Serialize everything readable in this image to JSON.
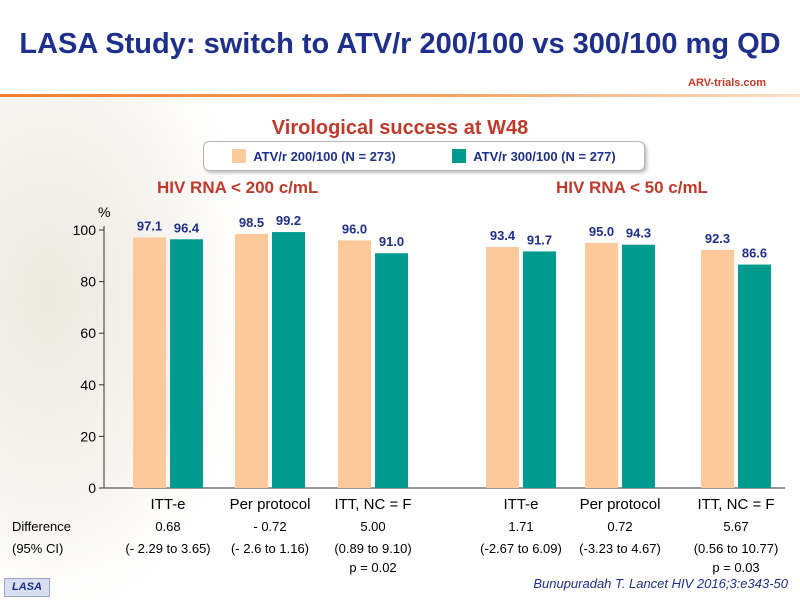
{
  "slide": {
    "title": "LASA Study: switch to ATV/r 200/100 vs 300/100 mg QD",
    "brand": "ARV-trials.com",
    "footer_tag": "LASA",
    "citation": "Bunupuradah T. Lancet HIV 2016;3:e343-50"
  },
  "colors": {
    "series1": "#fcc99a",
    "series2": "#009a8e",
    "title": "#1f2f8c",
    "accent": "#c0392b"
  },
  "chart_data": {
    "type": "bar",
    "title": "Virological success at W48",
    "ylabel": "%",
    "ylim": [
      0,
      100
    ],
    "yticks": [
      0,
      20,
      40,
      60,
      80,
      100
    ],
    "legend_placement": "top-center",
    "grid": false,
    "series": [
      {
        "name": "ATV/r 200/100 (N = 273)"
      },
      {
        "name": "ATV/r 300/100 (N = 277)"
      }
    ],
    "groups": [
      {
        "label": "HIV RNA < 200 c/mL",
        "categories": [
          {
            "label": "ITT-e",
            "values": [
              97.1,
              96.4
            ],
            "value_labels": [
              "97.1",
              "96.4"
            ],
            "difference": "0.68",
            "ci": "(- 2.29 to 3.65)",
            "p": ""
          },
          {
            "label": "Per protocol",
            "values": [
              98.5,
              99.2
            ],
            "value_labels": [
              "98.5",
              "99.2"
            ],
            "difference": "- 0.72",
            "ci": "(- 2.6 to 1.16)",
            "p": ""
          },
          {
            "label": "ITT, NC = F",
            "values": [
              96.0,
              91.0
            ],
            "value_labels": [
              "96.0",
              "91.0"
            ],
            "difference": "5.00",
            "ci": "(0.89 to 9.10)",
            "p": "p = 0.02"
          }
        ]
      },
      {
        "label": "HIV RNA < 50 c/mL",
        "categories": [
          {
            "label": "ITT-e",
            "values": [
              93.4,
              91.7
            ],
            "value_labels": [
              "93.4",
              "91.7"
            ],
            "difference": "1.71",
            "ci": "(-2.67 to 6.09)",
            "p": ""
          },
          {
            "label": "Per protocol",
            "values": [
              95.0,
              94.3
            ],
            "value_labels": [
              "95.0",
              "94.3"
            ],
            "difference": "0.72",
            "ci": "(-3.23 to 4.67)",
            "p": ""
          },
          {
            "label": "ITT, NC = F",
            "values": [
              92.3,
              86.6
            ],
            "value_labels": [
              "92.3",
              "86.6"
            ],
            "difference": "5.67",
            "ci": "(0.56 to 10.77)",
            "p": "p = 0.03"
          }
        ]
      }
    ],
    "difference_label": "Difference",
    "ci_label": "(95% CI)"
  }
}
